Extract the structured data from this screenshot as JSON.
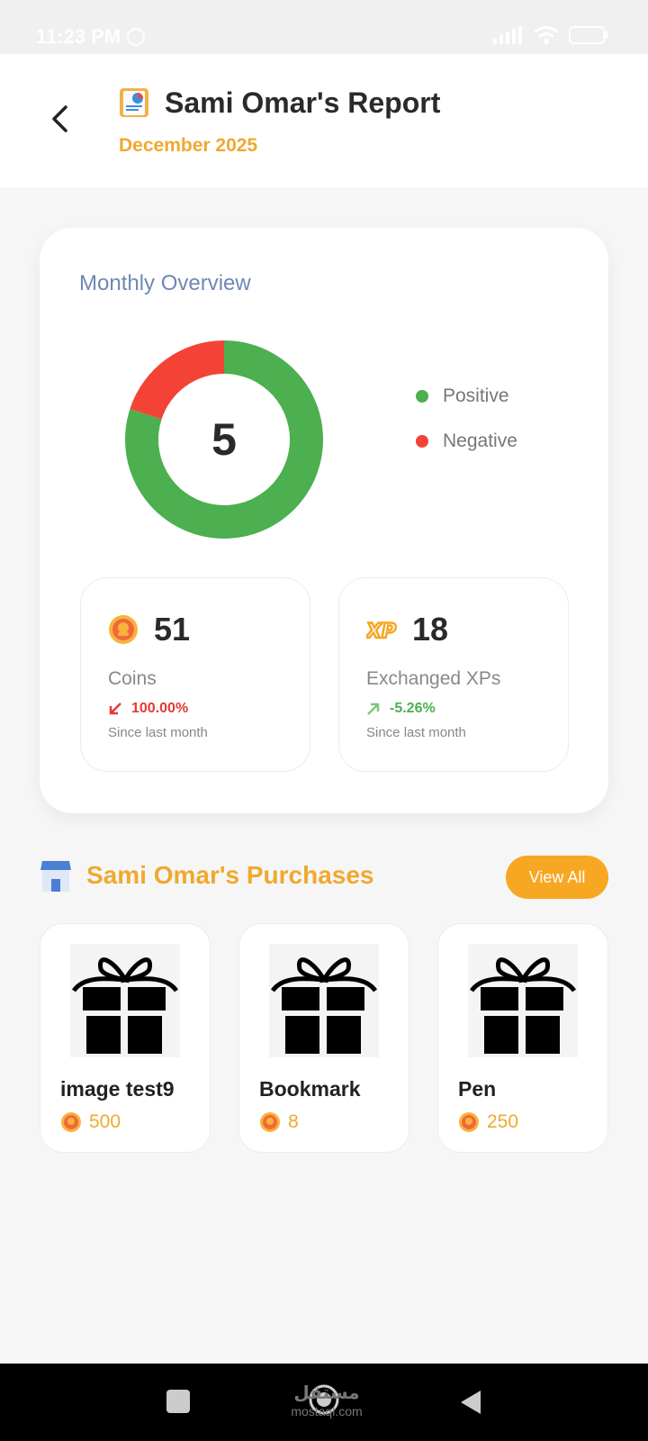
{
  "status_bar": {
    "time": "11:23 PM"
  },
  "header": {
    "title": "Sami Omar's Report",
    "subtitle": "December 2025"
  },
  "overview": {
    "title": "Monthly Overview",
    "center_value": "5",
    "legend": [
      {
        "label": "Positive",
        "color": "#4caf50"
      },
      {
        "label": "Negative",
        "color": "#f44336"
      }
    ],
    "coins": {
      "value": "51",
      "label": "Coins",
      "change": "100.00%",
      "change_color": "#e53935",
      "since": "Since last month"
    },
    "xp": {
      "value": "18",
      "label": "Exchanged XPs",
      "change": "-5.26%",
      "change_color": "#4caf50",
      "since": "Since last month"
    }
  },
  "chart_data": {
    "type": "pie",
    "categories": [
      "Positive",
      "Negative"
    ],
    "values": [
      4,
      1
    ],
    "colors": [
      "#4caf50",
      "#f44336"
    ]
  },
  "purchases": {
    "title": "Sami Omar's Purchases",
    "view_all_label": "View All",
    "items": [
      {
        "name": "image test9",
        "price": "500"
      },
      {
        "name": "Bookmark",
        "price": "8"
      },
      {
        "name": "Pen",
        "price": "250"
      }
    ]
  },
  "nav": {
    "watermark_top": "مستقل",
    "watermark_bottom": "mostaql.com"
  }
}
